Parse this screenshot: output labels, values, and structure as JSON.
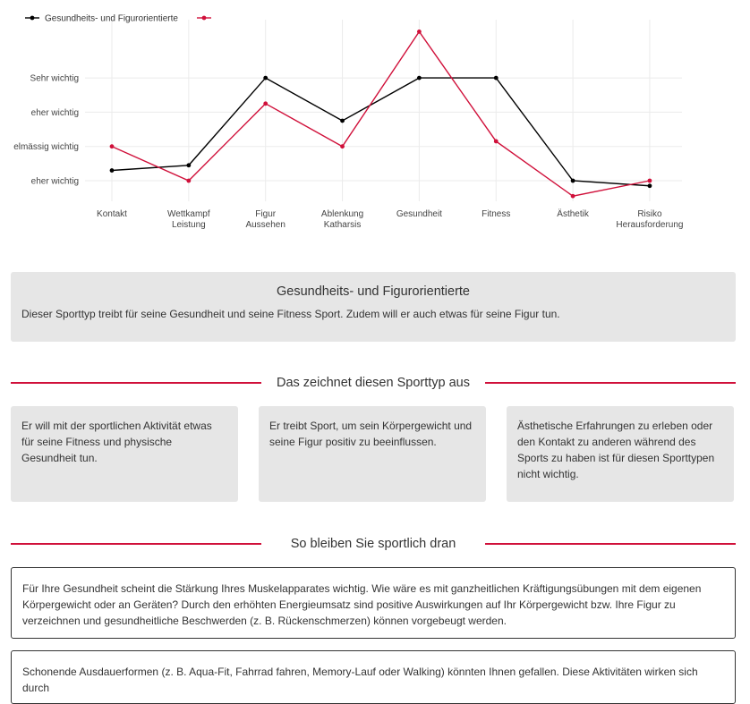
{
  "chart_data": {
    "type": "line",
    "categories": [
      [
        "Kontakt"
      ],
      [
        "Wettkampf",
        "Leistung"
      ],
      [
        "Figur",
        "Aussehen"
      ],
      [
        "Ablenkung",
        "Katharsis"
      ],
      [
        "Gesundheit"
      ],
      [
        "Fitness"
      ],
      [
        "Ästhetik"
      ],
      [
        "Risiko",
        "Herausforderung"
      ]
    ],
    "y_ticks": [
      {
        "value": 1,
        "label": "eher wichtig"
      },
      {
        "value": 2,
        "label": "elmässig wichtig"
      },
      {
        "value": 3,
        "label": "eher wichtig"
      },
      {
        "value": 4,
        "label": "Sehr wichtig"
      }
    ],
    "ylim": [
      0.5,
      5.2
    ],
    "grid": true,
    "legend_position": "top-left",
    "series": [
      {
        "name": "Gesundheits- und Figurorientierte",
        "color": "#000000",
        "values": [
          1.3,
          1.45,
          4.0,
          2.75,
          4.0,
          4.0,
          1.0,
          0.85
        ]
      },
      {
        "name": "",
        "color": "#d0103a",
        "values": [
          2.0,
          1.0,
          3.25,
          2.0,
          5.35,
          2.15,
          0.55,
          1.0
        ]
      }
    ]
  },
  "profile": {
    "title": "Gesundheits- und Figurorientierte",
    "description": "Dieser Sporttyp treibt für seine Gesundheit und seine Fitness Sport. Zudem will er auch etwas für seine Figur tun."
  },
  "section1": {
    "title": "Das zeichnet diesen Sporttyp aus",
    "cards": [
      "Er will mit der sportlichen Aktivität etwas für seine Fitness und physische Gesundheit tun.",
      "Er treibt Sport, um sein Körpergewicht und seine Figur positiv zu beeinflussen.",
      "Ästhetische Erfahrungen zu erleben oder den Kontakt zu anderen während des Sports zu haben ist für diesen Sporttypen nicht wichtig."
    ]
  },
  "section2": {
    "title": "So bleiben Sie sportlich dran",
    "tips": [
      "Für Ihre Gesundheit scheint die Stärkung Ihres Muskelapparates wichtig. Wie wäre es mit ganzheitlichen Kräftigungsübungen mit dem eigenen Körpergewicht oder an Geräten? Durch den erhöhten Energieumsatz sind positive Auswirkungen auf Ihr Körpergewicht bzw. Ihre Figur zu verzeichnen und gesundheitliche Beschwerden (z. B. Rückenschmerzen) können vorgebeugt werden.",
      "Schonende Ausdauerformen (z. B. Aqua-Fit, Fahrrad fahren, Memory-Lauf oder Walking) könnten Ihnen gefallen. Diese Aktivitäten wirken sich durch"
    ]
  }
}
